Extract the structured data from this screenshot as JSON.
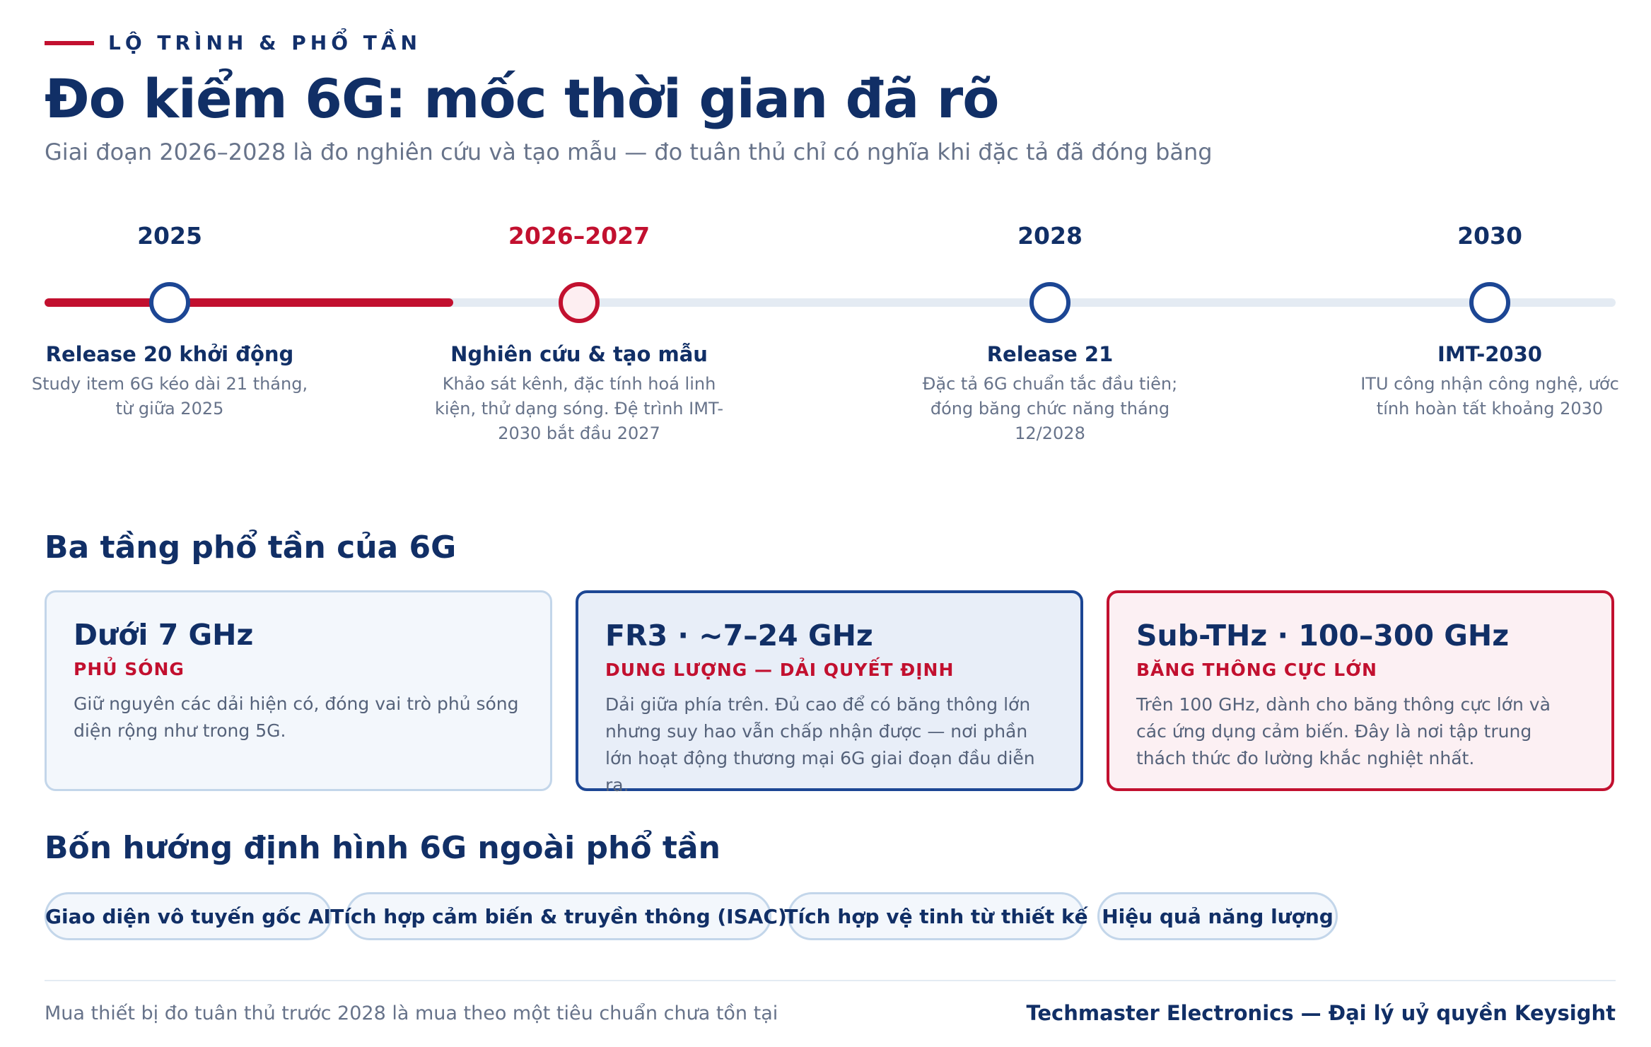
{
  "header": {
    "eyebrow": "LỘ TRÌNH & PHỔ TẦN",
    "title": "Đo kiểm 6G: mốc thời gian đã rõ",
    "subtitle": "Giai đoạn 2026–2028 là đo nghiên cứu và tạo mẫu — đo tuân thủ chỉ có nghĩa khi đặc tả đã đóng băng"
  },
  "timeline": {
    "colors": {
      "done": "#c2102f",
      "pending": "#e4ebf3",
      "node": "#1c4694",
      "current": "#c2102f"
    },
    "milestones": [
      {
        "year": "2025",
        "title": "Release 20 khởi động",
        "desc": "Study item 6G kéo dài 21 tháng, từ giữa 2025"
      },
      {
        "year": "2026–2027",
        "title": "Nghiên cứu & tạo mẫu",
        "desc": "Khảo sát kênh, đặc tính hoá linh kiện, thử dạng sóng. Đệ trình IMT-2030 bắt đầu 2027"
      },
      {
        "year": "2028",
        "title": "Release 21",
        "desc": "Đặc tả 6G chuẩn tắc đầu tiên; đóng băng chức năng tháng 12/2028"
      },
      {
        "year": "2030",
        "title": "IMT-2030",
        "desc": "ITU công nhận công nghệ, ước tính hoàn tất khoảng 2030"
      }
    ]
  },
  "spectrum": {
    "heading": "Ba tầng phổ tần của 6G",
    "bands": [
      {
        "name": "Dưới 7 GHz",
        "role": "PHỦ SÓNG",
        "desc": "Giữ nguyên các dải hiện có, đóng vai trò phủ sóng diện rộng như trong 5G."
      },
      {
        "name": "FR3 · ~7–24 GHz",
        "role": "DUNG LƯỢNG — DẢI QUYẾT ĐỊNH",
        "desc": "Dải giữa phía trên. Đủ cao để có băng thông lớn nhưng suy hao vẫn chấp nhận được — nơi phần lớn hoạt động thương mại 6G giai đoạn đầu diễn ra."
      },
      {
        "name": "Sub-THz · 100–300 GHz",
        "role": "BĂNG THÔNG CỰC LỚN",
        "desc": "Trên 100 GHz, dành cho băng thông cực lớn và các ứng dụng cảm biến. Đây là nơi tập trung thách thức đo lường khắc nghiệt nhất."
      }
    ]
  },
  "directions": {
    "heading": "Bốn hướng định hình 6G ngoài phổ tần",
    "items": [
      "Giao diện vô tuyến gốc AI",
      "Tích hợp cảm biến & truyền thông (ISAC)",
      "Tích hợp vệ tinh từ thiết kế",
      "Hiệu quả năng lượng"
    ]
  },
  "footer": {
    "note": "Mua thiết bị đo tuân thủ trước 2028 là mua theo một tiêu chuẩn chưa tồn tại",
    "brand": "Techmaster Electronics — Đại lý uỷ quyền Keysight"
  }
}
